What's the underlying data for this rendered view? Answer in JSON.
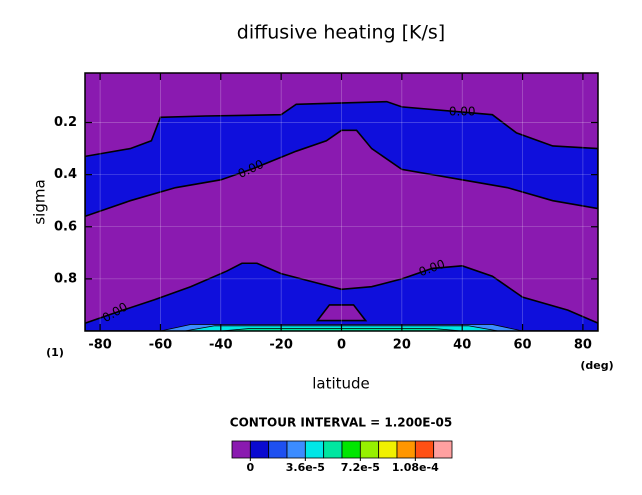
{
  "chart_data": {
    "type": "contour",
    "title": "diffusive heating [K/s]",
    "x_label": "latitude",
    "y_label": "sigma",
    "y_unit_label": "(1)",
    "x_unit_label": "(deg)",
    "contour_interval_label": "CONTOUR INTERVAL = 1.200E-05",
    "contour_label": "0.00",
    "xlim": [
      -85,
      85
    ],
    "ylim": [
      0.01,
      1.0
    ],
    "y_reversed": true,
    "xticks": [
      -80,
      -60,
      -40,
      -20,
      0,
      20,
      40,
      60,
      80
    ],
    "yticks": [
      0.2,
      0.4,
      0.6,
      0.8
    ],
    "grid": true,
    "background_color": "#8a1ab0",
    "line_color": "#000000",
    "regions": [
      {
        "color": "#0f0fdc",
        "x": [
          -85,
          -70,
          -63,
          -60,
          -45,
          -20,
          -15,
          15,
          20,
          40,
          50,
          58,
          70,
          85,
          85,
          70,
          55,
          40,
          20,
          10,
          5,
          0,
          -5,
          -15,
          -30,
          -40,
          -55,
          -70,
          -85
        ],
        "y": [
          0.33,
          0.3,
          0.27,
          0.18,
          0.175,
          0.17,
          0.13,
          0.12,
          0.14,
          0.16,
          0.17,
          0.24,
          0.29,
          0.3,
          0.53,
          0.5,
          0.45,
          0.42,
          0.38,
          0.3,
          0.23,
          0.23,
          0.27,
          0.31,
          0.38,
          0.42,
          0.45,
          0.5,
          0.56
        ]
      },
      {
        "color": "#0f0fdc",
        "x": [
          -85,
          -75,
          -62,
          -50,
          -38,
          -33,
          -28,
          -20,
          -10,
          0,
          10,
          20,
          30,
          40,
          50,
          60,
          75,
          85,
          85,
          -85
        ],
        "y": [
          0.97,
          0.93,
          0.88,
          0.83,
          0.77,
          0.74,
          0.74,
          0.78,
          0.81,
          0.84,
          0.83,
          0.8,
          0.76,
          0.75,
          0.79,
          0.87,
          0.92,
          0.97,
          1.0,
          1.0
        ]
      },
      {
        "color": "#8a1ab0",
        "x": [
          -8,
          -4,
          4,
          8
        ],
        "y": [
          0.96,
          0.9,
          0.9,
          0.96
        ]
      },
      {
        "color": "#3c8cff",
        "x": [
          -60,
          -50,
          50,
          60
        ],
        "y": [
          1.0,
          0.975,
          0.975,
          1.0
        ]
      },
      {
        "color": "#00e6e6",
        "x": [
          -52,
          -42,
          42,
          52
        ],
        "y": [
          1.0,
          0.98,
          0.98,
          1.0
        ]
      },
      {
        "color": "#00e6a0",
        "x": [
          -40,
          -30,
          30,
          40
        ],
        "y": [
          1.0,
          0.99,
          0.99,
          1.0
        ]
      }
    ],
    "colorbar": {
      "lim": [
        -1.2e-05,
        0.000132
      ],
      "colors": [
        "#8a1ab0",
        "#0a0ad0",
        "#1e50f0",
        "#3c8cff",
        "#00e6e6",
        "#00e6a0",
        "#00e600",
        "#96f000",
        "#f0f000",
        "#ff9600",
        "#ff5014",
        "#ffa0a0"
      ],
      "ticks": [
        0,
        {
          "value": 3.6e-05,
          "label": "3.6e-5"
        },
        {
          "value": 7.2e-05,
          "label": "7.2e-5"
        },
        {
          "value": 0.000108,
          "label": "1.08e-4"
        }
      ]
    }
  }
}
